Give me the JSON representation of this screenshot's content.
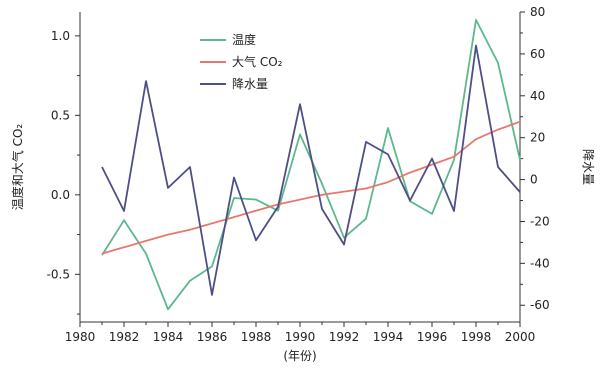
{
  "chart_data": {
    "type": "line",
    "title": "",
    "xlabel": "(年份)",
    "ylabel_left": "温度和大气 CO₂",
    "ylabel_right": "降水量",
    "x": [
      1981,
      1982,
      1983,
      1984,
      1985,
      1986,
      1987,
      1988,
      1989,
      1990,
      1991,
      1992,
      1993,
      1994,
      1995,
      1996,
      1997,
      1998,
      1999,
      2000
    ],
    "xlim": [
      1980,
      2000
    ],
    "xticks": [
      "1980",
      "1982",
      "1984",
      "1986",
      "1988",
      "1990",
      "1992",
      "1994",
      "1996",
      "1998",
      "2000"
    ],
    "ylim_left": [
      -0.8,
      1.15
    ],
    "yticks_left": [
      "-0.5",
      "0.0",
      "0.5",
      "1.0"
    ],
    "ylim_right": [
      -68,
      80
    ],
    "yticks_right": [
      "-60",
      "-40",
      "-20",
      "0",
      "20",
      "40",
      "60",
      "80"
    ],
    "legend_position": "top-center",
    "series": [
      {
        "name": "温度",
        "axis": "left",
        "color": "#5cb88d",
        "values": [
          -0.38,
          -0.16,
          -0.37,
          -0.72,
          -0.54,
          -0.45,
          -0.02,
          -0.03,
          -0.1,
          0.38,
          0.07,
          -0.27,
          -0.15,
          0.42,
          -0.04,
          -0.12,
          0.22,
          1.1,
          0.83,
          0.22
        ]
      },
      {
        "name": "大气 CO₂",
        "axis": "left",
        "color": "#e8786d",
        "values": [
          -0.37,
          -0.33,
          -0.29,
          -0.25,
          -0.22,
          -0.18,
          -0.14,
          -0.1,
          -0.06,
          -0.03,
          0.0,
          0.02,
          0.04,
          0.08,
          0.14,
          0.19,
          0.24,
          0.35,
          0.41,
          0.46
        ]
      },
      {
        "name": "降水量",
        "axis": "right",
        "color": "#4e4f86",
        "values": [
          6,
          -15,
          47,
          -4,
          6,
          -55,
          1,
          -29,
          -13,
          36,
          -14,
          -31,
          18,
          12,
          -10,
          10,
          -15,
          64,
          6,
          -6
        ]
      }
    ]
  }
}
